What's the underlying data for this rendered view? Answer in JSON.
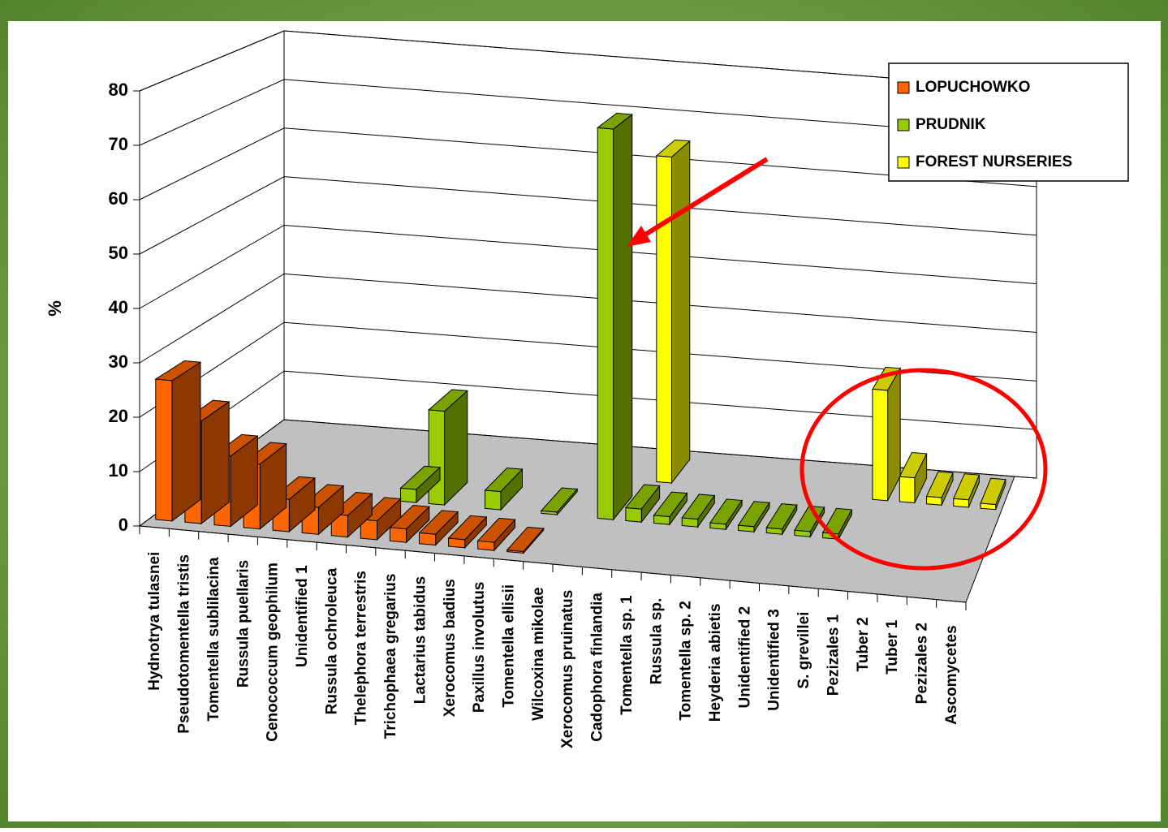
{
  "chart_data": {
    "type": "bar3d",
    "y_label": "%",
    "categories": [
      "Hydnotrya tulasnei",
      "Pseudotomentella tristis",
      "Tomentella sublilacina",
      "Russula puellaris",
      "Cenococcum geophilum",
      "Unidentified 1",
      "Russula ochroleuca",
      "Thelephora terrestris",
      "Trichophaea gregarius",
      "Lactarius tabidus",
      "Xerocomus badius",
      "Paxillus involutus",
      "Tomentella ellisii",
      "Wilcoxina mikolae",
      "Xerocomus pruinatus",
      "Cadophora finlandia",
      "Tomentella sp. 1",
      "Russula sp.",
      "Tomentella sp. 2",
      "Heyderia abietis",
      "Unidentified 2",
      "Unidentified 3",
      "S. grevillei",
      "Pezizales 1",
      "Tuber 2",
      "Tuber 1",
      "Pezizales 2",
      "Ascomycetes"
    ],
    "series": [
      {
        "name": "LOPUCHOWKO",
        "color": "#ff6600",
        "values": [
          26,
          19,
          13,
          12,
          6,
          5,
          4,
          3.5,
          2.5,
          2,
          1.5,
          1.5,
          0.3,
          null,
          null,
          null,
          null,
          null,
          null,
          null,
          null,
          null,
          null,
          null,
          null,
          null,
          null,
          null
        ]
      },
      {
        "name": "PRUDNIK",
        "color": "#99cc00",
        "values": [
          null,
          null,
          null,
          null,
          null,
          null,
          null,
          2.5,
          18,
          null,
          3.5,
          null,
          0.5,
          null,
          75,
          2.5,
          1.5,
          1.5,
          1,
          1,
          1,
          1,
          1,
          null,
          null,
          null,
          null,
          null
        ]
      },
      {
        "name": "FOREST NURSERIES",
        "color": "#ffff00",
        "values": [
          null,
          null,
          null,
          null,
          null,
          null,
          null,
          null,
          null,
          null,
          null,
          null,
          null,
          null,
          null,
          65,
          null,
          null,
          null,
          null,
          null,
          null,
          null,
          22,
          5,
          1.5,
          1.5,
          1
        ]
      }
    ],
    "ylim": [
      0,
      80
    ],
    "yticks": [
      0,
      10,
      20,
      30,
      40,
      50,
      60,
      70,
      80
    ],
    "grid": true,
    "legend": "top-right"
  }
}
